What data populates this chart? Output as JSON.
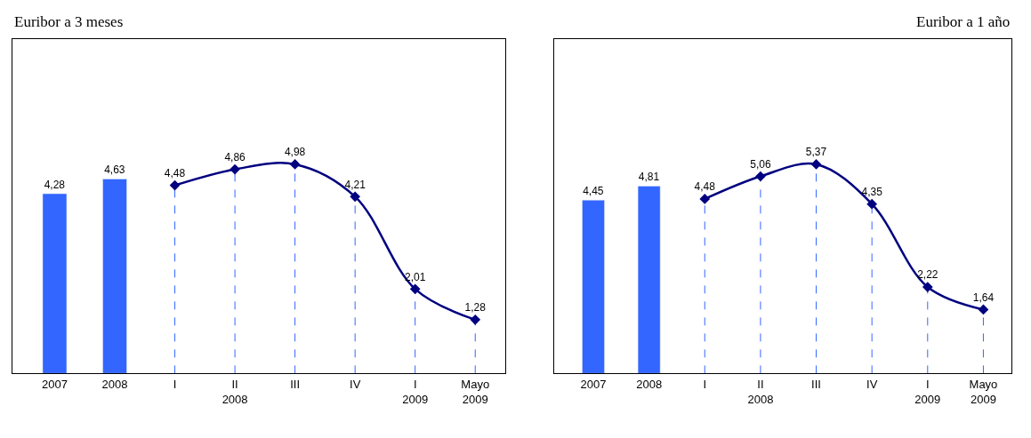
{
  "chart_data": [
    {
      "type": "bar",
      "title": "Euribor a 3 meses",
      "grid": "x",
      "categories": [
        "2007",
        "2008",
        "I",
        "II\n2008",
        "III",
        "IV",
        "I\n2009",
        "Mayo\n2009"
      ],
      "series": [
        {
          "color": "#3366ff",
          "values": [
            4.28,
            4.63,
            null,
            null,
            null,
            null,
            null,
            null
          ],
          "value_labels": [
            "4,28",
            "4,63",
            null,
            null,
            null,
            null,
            null,
            null
          ]
        },
        {
          "type": "line",
          "color": "#000080",
          "marker": "diamond",
          "values": [
            null,
            null,
            4.48,
            4.86,
            4.98,
            4.21,
            2.01,
            1.28
          ],
          "value_labels": [
            null,
            null,
            "4,48",
            "4,86",
            "4,98",
            "4,21",
            "2,01",
            "1,28"
          ]
        }
      ]
    },
    {
      "type": "bar",
      "title": "Euribor a 1 año",
      "grid": "x",
      "categories": [
        "2007",
        "2008",
        "I",
        "II\n2008",
        "III",
        "IV",
        "I\n2009",
        "Mayo\n2009"
      ],
      "series": [
        {
          "color": "#3366ff",
          "values": [
            4.45,
            4.81,
            null,
            null,
            null,
            null,
            null,
            null
          ],
          "value_labels": [
            "4,45",
            "4,81",
            null,
            null,
            null,
            null,
            null,
            null
          ]
        },
        {
          "type": "line",
          "color": "#000080",
          "marker": "diamond",
          "values": [
            null,
            null,
            4.48,
            5.06,
            5.37,
            4.35,
            2.22,
            1.64
          ],
          "value_labels": [
            null,
            null,
            "4,48",
            "5,06",
            "5,37",
            "4,35",
            "2,22",
            "1,64"
          ]
        }
      ]
    }
  ]
}
